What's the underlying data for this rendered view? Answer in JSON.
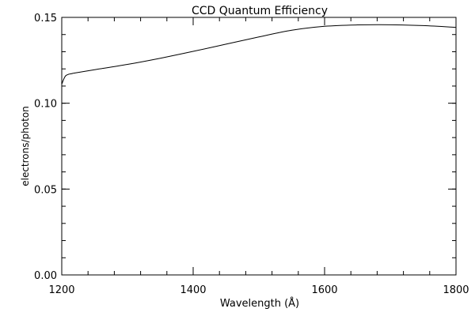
{
  "chart_data": {
    "type": "line",
    "title": "CCD Quantum Efficiency",
    "xlabel": "Wavelength (Å)",
    "ylabel": "electrons/photon",
    "xlim": [
      1200,
      1800
    ],
    "ylim": [
      0.0,
      0.15
    ],
    "x_ticks": [
      1200,
      1400,
      1600,
      1800
    ],
    "y_ticks": [
      0.0,
      0.05,
      0.1,
      0.15
    ],
    "x_tick_labels": [
      "1200",
      "1400",
      "1600",
      "1800"
    ],
    "y_tick_labels": [
      "0.00",
      "0.05",
      "0.10",
      "0.15"
    ],
    "x_minor_step": 40,
    "y_minor_step": 0.01,
    "grid": false,
    "legend": "none",
    "line_color": "#000000",
    "series": [
      {
        "x": [
          1200,
          1203,
          1206,
          1210,
          1215,
          1220,
          1250,
          1300,
          1350,
          1400,
          1450,
          1500,
          1550,
          1600,
          1650,
          1700,
          1750,
          1800
        ],
        "values": [
          0.111,
          0.114,
          0.116,
          0.1168,
          0.1172,
          0.1176,
          0.1195,
          0.1226,
          0.1262,
          0.1302,
          0.1344,
          0.1386,
          0.1425,
          0.1448,
          0.1456,
          0.1457,
          0.1452,
          0.1442
        ]
      }
    ]
  }
}
